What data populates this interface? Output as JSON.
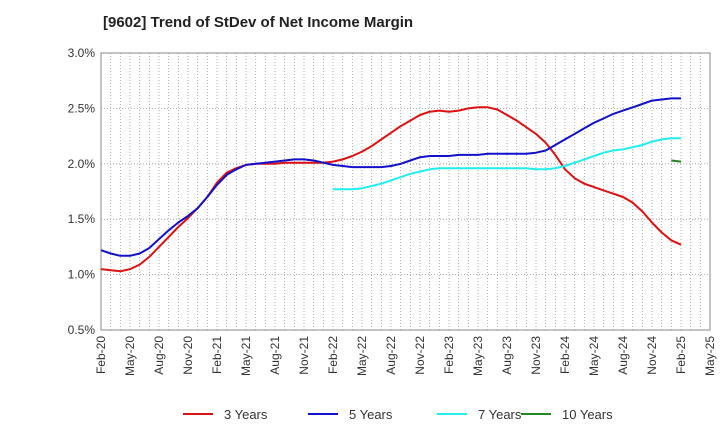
{
  "chart_data": {
    "type": "line",
    "title": "[9602]  Trend of StDev of Net Income Margin",
    "x_ticks": [
      "Feb-20",
      "May-20",
      "Aug-20",
      "Nov-20",
      "Feb-21",
      "May-21",
      "Aug-21",
      "Nov-21",
      "Feb-22",
      "May-22",
      "Aug-22",
      "Nov-22",
      "Feb-23",
      "May-23",
      "Aug-23",
      "Nov-23",
      "Feb-24",
      "May-24",
      "Aug-24",
      "Nov-24",
      "Feb-25",
      "May-25"
    ],
    "y_ticks": [
      "0.5%",
      "1.0%",
      "1.5%",
      "2.0%",
      "2.5%",
      "3.0%"
    ],
    "ylim": [
      0.5,
      3.0
    ],
    "grid": true,
    "legend_position": "bottom",
    "series": [
      {
        "name": "3 Years",
        "color": "#dd1111",
        "x": [
          "2020-02",
          "2020-03",
          "2020-04",
          "2020-05",
          "2020-06",
          "2020-07",
          "2020-08",
          "2020-09",
          "2020-10",
          "2020-11",
          "2020-12",
          "2021-01",
          "2021-02",
          "2021-03",
          "2021-04",
          "2021-05",
          "2021-06",
          "2021-07",
          "2021-08",
          "2021-09",
          "2021-10",
          "2021-11",
          "2021-12",
          "2022-01",
          "2022-02",
          "2022-03",
          "2022-04",
          "2022-05",
          "2022-06",
          "2022-07",
          "2022-08",
          "2022-09",
          "2022-10",
          "2022-11",
          "2022-12",
          "2023-01",
          "2023-02",
          "2023-03",
          "2023-04",
          "2023-05",
          "2023-06",
          "2023-07",
          "2023-08",
          "2023-09",
          "2023-10",
          "2023-11",
          "2023-12",
          "2024-01",
          "2024-02",
          "2024-03",
          "2024-04",
          "2024-05",
          "2024-06",
          "2024-07",
          "2024-08",
          "2024-09",
          "2024-10",
          "2024-11",
          "2024-12",
          "2025-01",
          "2025-02"
        ],
        "y": [
          1.05,
          1.04,
          1.03,
          1.05,
          1.09,
          1.16,
          1.25,
          1.34,
          1.43,
          1.51,
          1.6,
          1.7,
          1.83,
          1.92,
          1.96,
          1.99,
          2.0,
          2.0,
          2.0,
          2.01,
          2.01,
          2.01,
          2.01,
          2.01,
          2.02,
          2.04,
          2.07,
          2.11,
          2.16,
          2.22,
          2.28,
          2.34,
          2.39,
          2.44,
          2.47,
          2.48,
          2.47,
          2.48,
          2.5,
          2.51,
          2.51,
          2.49,
          2.44,
          2.39,
          2.33,
          2.27,
          2.19,
          2.08,
          1.95,
          1.87,
          1.82,
          1.79,
          1.76,
          1.73,
          1.7,
          1.65,
          1.57,
          1.47,
          1.38,
          1.31,
          1.27
        ]
      },
      {
        "name": "5 Years",
        "color": "#1111cc",
        "x": [
          "2020-02",
          "2020-03",
          "2020-04",
          "2020-05",
          "2020-06",
          "2020-07",
          "2020-08",
          "2020-09",
          "2020-10",
          "2020-11",
          "2020-12",
          "2021-01",
          "2021-02",
          "2021-03",
          "2021-04",
          "2021-05",
          "2021-06",
          "2021-07",
          "2021-08",
          "2021-09",
          "2021-10",
          "2021-11",
          "2021-12",
          "2022-01",
          "2022-02",
          "2022-03",
          "2022-04",
          "2022-05",
          "2022-06",
          "2022-07",
          "2022-08",
          "2022-09",
          "2022-10",
          "2022-11",
          "2022-12",
          "2023-01",
          "2023-02",
          "2023-03",
          "2023-04",
          "2023-05",
          "2023-06",
          "2023-07",
          "2023-08",
          "2023-09",
          "2023-10",
          "2023-11",
          "2023-12",
          "2024-01",
          "2024-02",
          "2024-03",
          "2024-04",
          "2024-05",
          "2024-06",
          "2024-07",
          "2024-08",
          "2024-09",
          "2024-10",
          "2024-11",
          "2024-12",
          "2025-01",
          "2025-02"
        ],
        "y": [
          1.22,
          1.19,
          1.17,
          1.17,
          1.19,
          1.24,
          1.32,
          1.4,
          1.47,
          1.53,
          1.6,
          1.7,
          1.81,
          1.9,
          1.95,
          1.99,
          2.0,
          2.01,
          2.02,
          2.03,
          2.04,
          2.04,
          2.03,
          2.01,
          1.99,
          1.98,
          1.97,
          1.97,
          1.97,
          1.97,
          1.98,
          2.0,
          2.03,
          2.06,
          2.07,
          2.07,
          2.07,
          2.08,
          2.08,
          2.08,
          2.09,
          2.09,
          2.09,
          2.09,
          2.09,
          2.1,
          2.12,
          2.17,
          2.22,
          2.27,
          2.32,
          2.37,
          2.41,
          2.45,
          2.48,
          2.51,
          2.54,
          2.57,
          2.58,
          2.59,
          2.59
        ]
      },
      {
        "name": "7 Years",
        "color": "#22eeee",
        "x": [
          "2022-02",
          "2022-03",
          "2022-04",
          "2022-05",
          "2022-06",
          "2022-07",
          "2022-08",
          "2022-09",
          "2022-10",
          "2022-11",
          "2022-12",
          "2023-01",
          "2023-02",
          "2023-03",
          "2023-04",
          "2023-05",
          "2023-06",
          "2023-07",
          "2023-08",
          "2023-09",
          "2023-10",
          "2023-11",
          "2023-12",
          "2024-01",
          "2024-02",
          "2024-03",
          "2024-04",
          "2024-05",
          "2024-06",
          "2024-07",
          "2024-08",
          "2024-09",
          "2024-10",
          "2024-11",
          "2024-12",
          "2025-01",
          "2025-02"
        ],
        "y": [
          1.77,
          1.77,
          1.77,
          1.78,
          1.8,
          1.82,
          1.85,
          1.88,
          1.91,
          1.93,
          1.95,
          1.96,
          1.96,
          1.96,
          1.96,
          1.96,
          1.96,
          1.96,
          1.96,
          1.96,
          1.96,
          1.95,
          1.95,
          1.96,
          1.98,
          2.01,
          2.04,
          2.07,
          2.1,
          2.12,
          2.13,
          2.15,
          2.17,
          2.2,
          2.22,
          2.23,
          2.23
        ]
      },
      {
        "name": "10 Years",
        "color": "#228822",
        "x": [
          "2025-01",
          "2025-02"
        ],
        "y": [
          2.03,
          2.02
        ]
      }
    ]
  }
}
